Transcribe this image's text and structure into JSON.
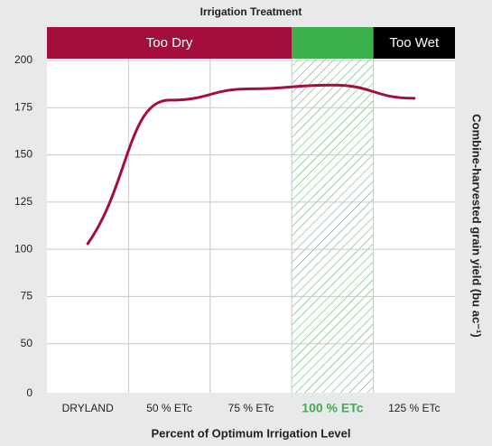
{
  "chart_data": {
    "type": "line",
    "title": "Irrigation Treatment",
    "x_label": "Percent of Optimum Irrigation Level",
    "y_label": "Combine-harvested grain yield (bu ac⁻¹)",
    "categories": [
      "DRYLAND",
      "50 % ETc",
      "75 % ETc",
      "100 % ETc",
      "125 % ETc"
    ],
    "highlight_category": 3,
    "highlight_color": "#3cb04a",
    "series": [
      {
        "name": "Grain yield",
        "color": "#a30e3b",
        "values": [
          103,
          179,
          185,
          187,
          180
        ]
      }
    ],
    "ylim": [
      25,
      200
    ],
    "yticks": [
      50,
      75,
      100,
      125,
      150,
      175,
      200
    ],
    "y_origin_label": "0",
    "grid": true,
    "zones": [
      {
        "name": "Too Dry",
        "color": "#a30e3b",
        "from": 0,
        "to": 3
      },
      {
        "name": "",
        "color": "#3cb04a",
        "from": 3,
        "to": 4
      },
      {
        "name": "Too Wet",
        "color": "#000000",
        "from": 4,
        "to": 5
      }
    ]
  }
}
